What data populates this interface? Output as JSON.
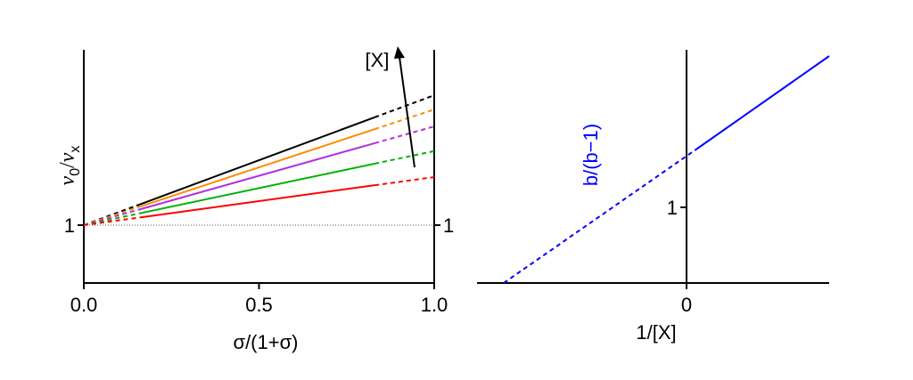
{
  "chart_data": [
    {
      "type": "line",
      "xlabel": "σ/(1+σ)",
      "ylabel": "v0/vx",
      "ylabel_parts": {
        "num": "v",
        "num_sub": "0",
        "sep": "/",
        "den": "v",
        "den_sub": "x"
      },
      "xlim": [
        0,
        1
      ],
      "x_ticks": [
        {
          "value": 0.0,
          "label": "0.0"
        },
        {
          "value": 0.5,
          "label": "0.5"
        },
        {
          "value": 1.0,
          "label": "1.0"
        }
      ],
      "y_ticks": [
        {
          "value": 1,
          "label": "1"
        }
      ],
      "reference_line": {
        "y": 1,
        "style": "dotted"
      },
      "series_y0": 1,
      "solid_range": [
        0.16,
        0.83
      ],
      "series": [
        {
          "color": "#000000",
          "y_end": 2.0
        },
        {
          "color": "#ff8c00",
          "y_end": 1.89
        },
        {
          "color": "#b030e0",
          "y_end": 1.76
        },
        {
          "color": "#00b000",
          "y_end": 1.57
        },
        {
          "color": "#ff0000",
          "y_end": 1.37
        }
      ],
      "annotation": {
        "text": "[X]",
        "meaning": "increasing [X]"
      }
    },
    {
      "type": "line",
      "xlabel": "1/[X]",
      "ylabel": "b/(b−1)",
      "ylabel_color": "#0000ff",
      "x_ticks": [
        {
          "value": 0,
          "label": "0"
        }
      ],
      "y_ticks": [
        {
          "value": 1,
          "label": "1"
        }
      ],
      "line": {
        "color": "#0000ff",
        "intercept": 1.39,
        "slope": 2.08,
        "solid_from_x": 0.03
      },
      "xlim": [
        -0.67,
        0.52
      ],
      "ylim": [
        0,
        2.0
      ]
    }
  ]
}
